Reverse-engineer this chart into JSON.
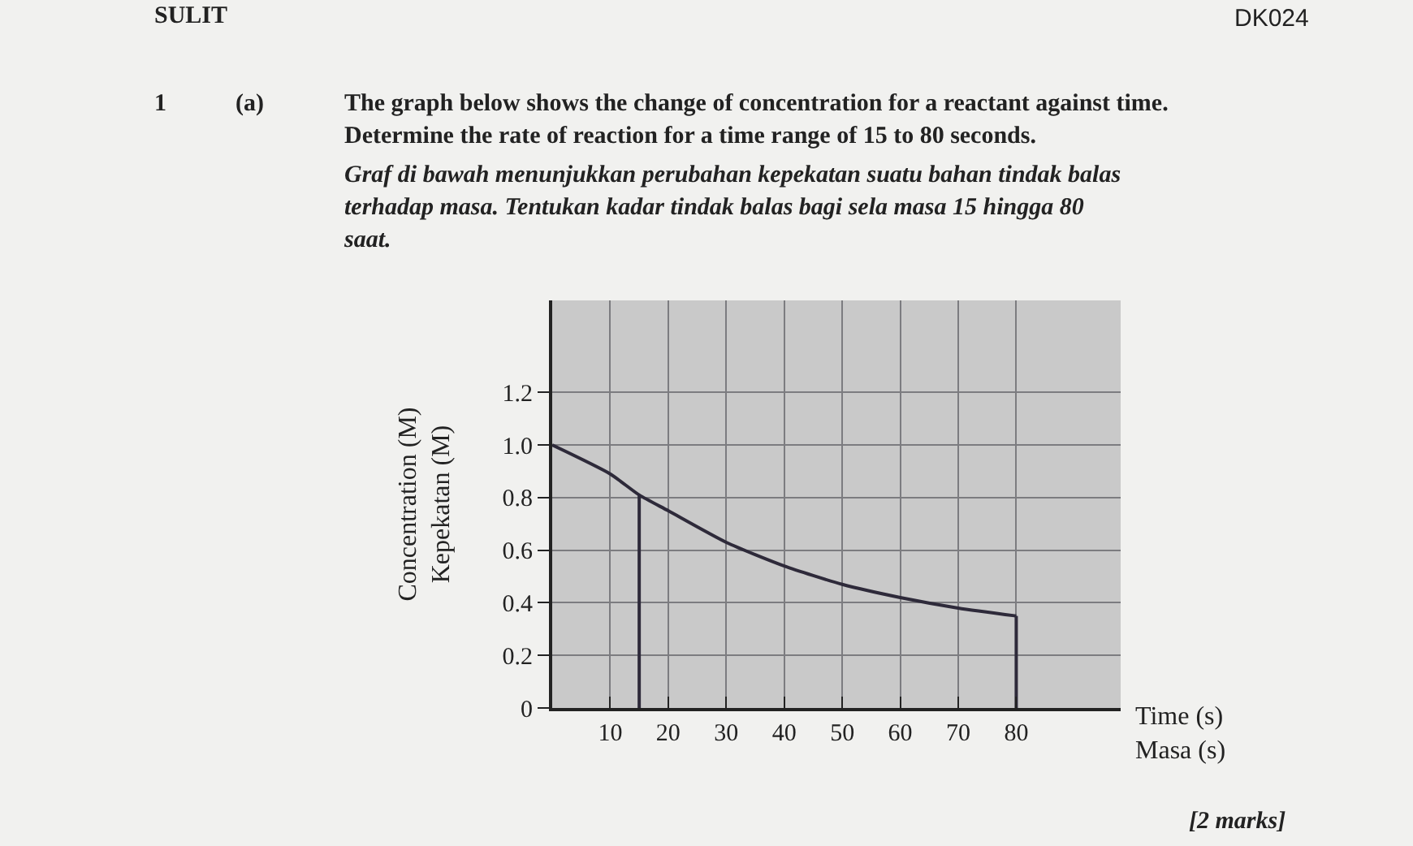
{
  "chart_data": {
    "type": "line",
    "annotations": [
      "SULIT",
      "DK024",
      "1",
      "(a)",
      "The graph below shows the change of concentration for a reactant against time.\nDetermine the rate of reaction for a time range of 15 to 80 seconds.",
      "Graf di bawah menunjukkan perubahan kepekatan suatu bahan tindak balas\nterhadap masa. Tentukan kadar tindak balas bagi sela masa 15 hingga 80\nsaat.",
      "[2 marks]"
    ],
    "xlabel": "Time (s)\nMasa (s)",
    "ylabel": "Concentration (M)\nKepekatan (M)",
    "series": [
      {
        "color": "#2e2a3a",
        "x": [
          0,
          10,
          15,
          20,
          30,
          40,
          50,
          60,
          70,
          80
        ],
        "values": [
          1.0,
          0.89,
          0.81,
          0.75,
          0.63,
          0.54,
          0.47,
          0.42,
          0.38,
          0.35
        ]
      },
      {
        "color": "#2e2a3a",
        "x": [
          15,
          15
        ],
        "values": [
          0,
          0.81
        ]
      },
      {
        "color": "#2e2a3a",
        "x": [
          80,
          80
        ],
        "values": [
          0,
          0.35
        ]
      }
    ],
    "xlim": [
      0,
      98
    ],
    "ylim": [
      0,
      1.55
    ],
    "xticks": [
      10,
      20,
      30,
      40,
      50,
      60,
      70,
      80
    ],
    "yticks": [
      0,
      0.2,
      0.4,
      0.6,
      0.8,
      {
        "value": 1,
        "label": "1.0"
      },
      1.2
    ],
    "grid": true,
    "marker": "none",
    "line_style": "solid"
  }
}
